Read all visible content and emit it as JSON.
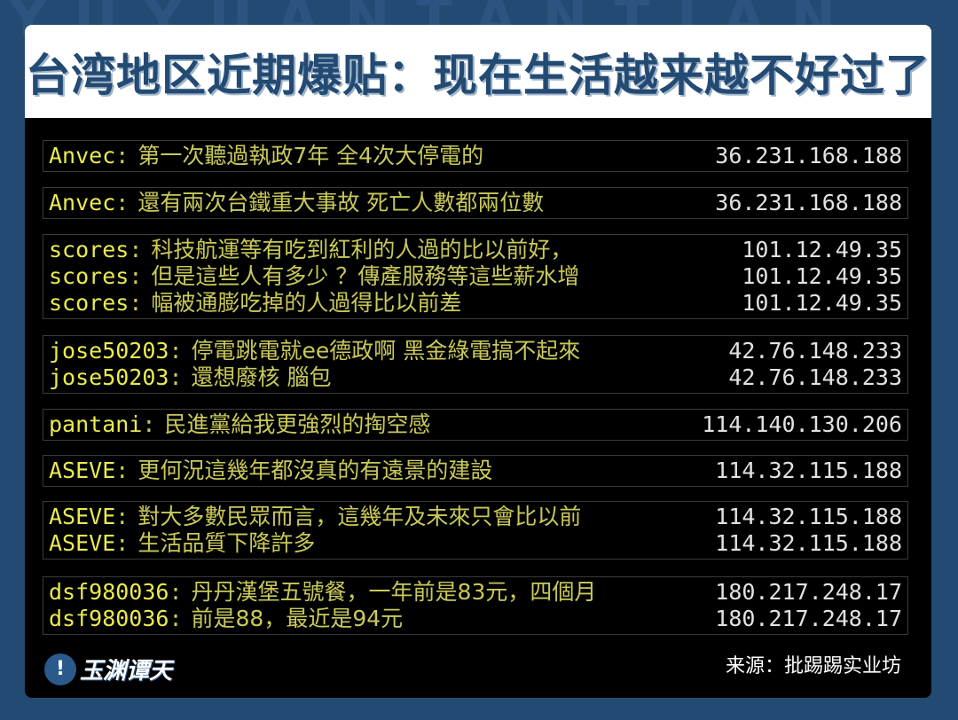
{
  "background_watermark": "YUYUANTANTIAN",
  "title": "台湾地区近期爆贴：现在生活越来越不好过了",
  "blocks": [
    {
      "rows": [
        {
          "user": "Anvec",
          "msg": "第一次聽過執政7年 全4次大停電的",
          "ip": "36.231.168.188"
        }
      ]
    },
    {
      "rows": [
        {
          "user": "Anvec",
          "msg": "還有兩次台鐵重大事故 死亡人數都兩位數",
          "ip": "36.231.168.188"
        }
      ]
    },
    {
      "rows": [
        {
          "user": "scores",
          "msg": "科技航運等有吃到紅利的人過的比以前好，",
          "ip": "101.12.49.35"
        },
        {
          "user": "scores",
          "msg": "但是這些人有多少 ？傳產服務等這些薪水增",
          "ip": "101.12.49.35"
        },
        {
          "user": "scores",
          "msg": "幅被通膨吃掉的人過得比以前差",
          "ip": "101.12.49.35"
        }
      ]
    },
    {
      "rows": [
        {
          "user": "jose50203",
          "msg": "停電跳電就ee德政啊 黑金綠電搞不起來",
          "ip": "42.76.148.233"
        },
        {
          "user": "jose50203",
          "msg": "還想廢核 腦包",
          "ip": "42.76.148.233"
        }
      ]
    },
    {
      "rows": [
        {
          "user": "pantani",
          "msg": "民進黨給我更強烈的掏空感",
          "ip": "114.140.130.206"
        }
      ]
    },
    {
      "rows": [
        {
          "user": "ASEVE",
          "msg": "更何況這幾年都沒真的有遠景的建設",
          "ip": "114.32.115.188"
        }
      ]
    },
    {
      "rows": [
        {
          "user": "ASEVE",
          "msg": "對大多數民眾而言，這幾年及未來只會比以前",
          "ip": "114.32.115.188"
        },
        {
          "user": "ASEVE",
          "msg": "生活品質下降許多",
          "ip": "114.32.115.188"
        }
      ]
    },
    {
      "rows": [
        {
          "user": "dsf980036",
          "msg": "丹丹漢堡五號餐，一年前是83元，四個月",
          "ip": "180.217.248.17"
        },
        {
          "user": "dsf980036",
          "msg": "前是88，最近是94元",
          "ip": "180.217.248.17"
        }
      ]
    }
  ],
  "footer": {
    "logo_text": "玉渊谭天",
    "source": "来源：批踢踢实业坊"
  },
  "colors": {
    "brand": "#234a72",
    "username": "#eaea50",
    "message": "#c9c95a",
    "ip": "#e2e2e2"
  }
}
